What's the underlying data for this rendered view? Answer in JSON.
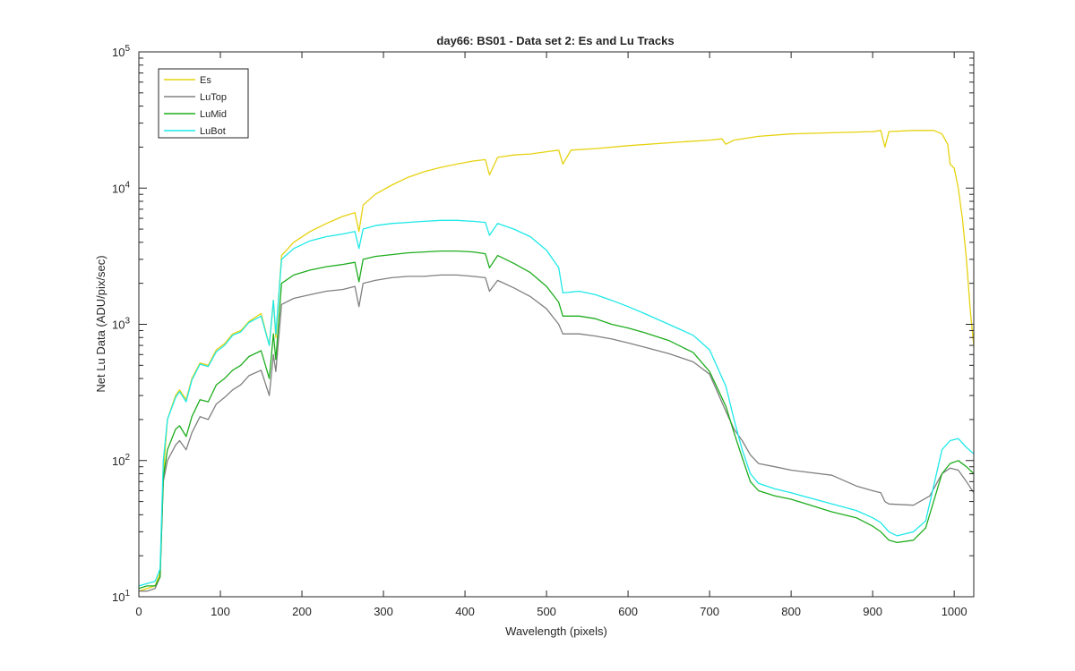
{
  "chart_data": {
    "type": "line",
    "title": "day66: BS01 - Data set 2: Es and Lu Tracks",
    "xlabel": "Wavelength (pixels)",
    "ylabel": "Net Lu Data (ADU/pix/sec)",
    "xlim": [
      0,
      1024
    ],
    "ylim": [
      10,
      100000
    ],
    "yscale": "log",
    "grid": false,
    "legend_position": "top-left",
    "x_ticks": [
      0,
      100,
      200,
      300,
      400,
      500,
      600,
      700,
      800,
      900,
      1000
    ],
    "y_ticks": [
      10,
      100,
      1000,
      10000,
      100000
    ],
    "y_tick_exponents": [
      "1",
      "2",
      "3",
      "4",
      "5"
    ],
    "y_tick_base": "10",
    "legend": [
      "Es",
      "LuTop",
      "LuMid",
      "LuBot"
    ],
    "series": [
      {
        "name": "Es",
        "color": "#e6d20f",
        "points": [
          [
            0,
            11
          ],
          [
            10,
            11.5
          ],
          [
            20,
            12
          ],
          [
            26,
            15
          ],
          [
            30,
            80
          ],
          [
            35,
            200
          ],
          [
            45,
            300
          ],
          [
            50,
            330
          ],
          [
            58,
            280
          ],
          [
            65,
            400
          ],
          [
            75,
            520
          ],
          [
            85,
            500
          ],
          [
            95,
            650
          ],
          [
            105,
            720
          ],
          [
            115,
            850
          ],
          [
            125,
            900
          ],
          [
            135,
            1050
          ],
          [
            150,
            1200
          ],
          [
            160,
            700
          ],
          [
            165,
            1500
          ],
          [
            168,
            800
          ],
          [
            175,
            3200
          ],
          [
            190,
            4000
          ],
          [
            210,
            4800
          ],
          [
            230,
            5500
          ],
          [
            250,
            6200
          ],
          [
            265,
            6600
          ],
          [
            270,
            4800
          ],
          [
            275,
            7500
          ],
          [
            290,
            9000
          ],
          [
            310,
            10500
          ],
          [
            330,
            12000
          ],
          [
            350,
            13200
          ],
          [
            370,
            14200
          ],
          [
            390,
            15000
          ],
          [
            410,
            15800
          ],
          [
            425,
            16200
          ],
          [
            430,
            12500
          ],
          [
            440,
            16800
          ],
          [
            460,
            17500
          ],
          [
            480,
            17800
          ],
          [
            500,
            18500
          ],
          [
            515,
            19000
          ],
          [
            520,
            15000
          ],
          [
            530,
            19000
          ],
          [
            560,
            19500
          ],
          [
            600,
            20500
          ],
          [
            650,
            21500
          ],
          [
            700,
            22500
          ],
          [
            715,
            23000
          ],
          [
            720,
            21000
          ],
          [
            730,
            22500
          ],
          [
            760,
            24000
          ],
          [
            800,
            25000
          ],
          [
            850,
            25500
          ],
          [
            900,
            26000
          ],
          [
            910,
            26500
          ],
          [
            915,
            20000
          ],
          [
            920,
            26000
          ],
          [
            950,
            26500
          ],
          [
            975,
            26500
          ],
          [
            985,
            25000
          ],
          [
            992,
            21000
          ],
          [
            995,
            15000
          ],
          [
            1000,
            14000
          ],
          [
            1005,
            10000
          ],
          [
            1010,
            6000
          ],
          [
            1015,
            3000
          ],
          [
            1020,
            1200
          ],
          [
            1024,
            700
          ]
        ]
      },
      {
        "name": "LuTop",
        "color": "#808080",
        "points": [
          [
            0,
            11
          ],
          [
            10,
            11
          ],
          [
            20,
            11.5
          ],
          [
            26,
            14
          ],
          [
            30,
            70
          ],
          [
            35,
            100
          ],
          [
            45,
            130
          ],
          [
            50,
            140
          ],
          [
            58,
            120
          ],
          [
            65,
            160
          ],
          [
            75,
            210
          ],
          [
            85,
            200
          ],
          [
            95,
            260
          ],
          [
            105,
            290
          ],
          [
            115,
            330
          ],
          [
            125,
            360
          ],
          [
            135,
            420
          ],
          [
            150,
            460
          ],
          [
            160,
            300
          ],
          [
            165,
            600
          ],
          [
            168,
            450
          ],
          [
            175,
            1400
          ],
          [
            190,
            1550
          ],
          [
            210,
            1650
          ],
          [
            230,
            1750
          ],
          [
            250,
            1800
          ],
          [
            265,
            1900
          ],
          [
            270,
            1350
          ],
          [
            275,
            2000
          ],
          [
            290,
            2100
          ],
          [
            310,
            2200
          ],
          [
            330,
            2250
          ],
          [
            350,
            2250
          ],
          [
            370,
            2300
          ],
          [
            390,
            2300
          ],
          [
            410,
            2250
          ],
          [
            425,
            2200
          ],
          [
            430,
            1750
          ],
          [
            440,
            2100
          ],
          [
            460,
            1850
          ],
          [
            480,
            1600
          ],
          [
            500,
            1300
          ],
          [
            515,
            1000
          ],
          [
            520,
            850
          ],
          [
            540,
            850
          ],
          [
            560,
            820
          ],
          [
            580,
            780
          ],
          [
            600,
            730
          ],
          [
            620,
            680
          ],
          [
            650,
            610
          ],
          [
            680,
            530
          ],
          [
            700,
            430
          ],
          [
            720,
            230
          ],
          [
            730,
            170
          ],
          [
            740,
            140
          ],
          [
            750,
            110
          ],
          [
            760,
            95
          ],
          [
            780,
            90
          ],
          [
            800,
            85
          ],
          [
            850,
            78
          ],
          [
            880,
            65
          ],
          [
            900,
            60
          ],
          [
            910,
            58
          ],
          [
            915,
            50
          ],
          [
            920,
            48
          ],
          [
            950,
            47
          ],
          [
            970,
            55
          ],
          [
            985,
            80
          ],
          [
            995,
            88
          ],
          [
            1005,
            85
          ],
          [
            1015,
            70
          ],
          [
            1024,
            58
          ]
        ]
      },
      {
        "name": "LuMid",
        "color": "#1ead1e",
        "points": [
          [
            0,
            11.5
          ],
          [
            10,
            12
          ],
          [
            20,
            12
          ],
          [
            26,
            14
          ],
          [
            30,
            75
          ],
          [
            35,
            120
          ],
          [
            45,
            170
          ],
          [
            50,
            180
          ],
          [
            58,
            150
          ],
          [
            65,
            210
          ],
          [
            75,
            280
          ],
          [
            85,
            270
          ],
          [
            95,
            360
          ],
          [
            105,
            400
          ],
          [
            115,
            460
          ],
          [
            125,
            500
          ],
          [
            135,
            580
          ],
          [
            150,
            640
          ],
          [
            160,
            400
          ],
          [
            165,
            850
          ],
          [
            168,
            550
          ],
          [
            175,
            2000
          ],
          [
            190,
            2300
          ],
          [
            210,
            2500
          ],
          [
            230,
            2650
          ],
          [
            250,
            2750
          ],
          [
            265,
            2850
          ],
          [
            270,
            2050
          ],
          [
            275,
            3000
          ],
          [
            290,
            3150
          ],
          [
            310,
            3250
          ],
          [
            330,
            3350
          ],
          [
            350,
            3400
          ],
          [
            370,
            3450
          ],
          [
            390,
            3450
          ],
          [
            410,
            3400
          ],
          [
            425,
            3300
          ],
          [
            430,
            2600
          ],
          [
            440,
            3200
          ],
          [
            460,
            2800
          ],
          [
            480,
            2400
          ],
          [
            500,
            1900
          ],
          [
            515,
            1450
          ],
          [
            520,
            1150
          ],
          [
            540,
            1150
          ],
          [
            560,
            1100
          ],
          [
            580,
            1000
          ],
          [
            600,
            940
          ],
          [
            620,
            870
          ],
          [
            650,
            760
          ],
          [
            680,
            620
          ],
          [
            700,
            450
          ],
          [
            720,
            250
          ],
          [
            730,
            160
          ],
          [
            740,
            105
          ],
          [
            750,
            70
          ],
          [
            760,
            60
          ],
          [
            780,
            55
          ],
          [
            800,
            52
          ],
          [
            850,
            42
          ],
          [
            880,
            38
          ],
          [
            900,
            33
          ],
          [
            910,
            30
          ],
          [
            920,
            26
          ],
          [
            930,
            25
          ],
          [
            950,
            26
          ],
          [
            965,
            32
          ],
          [
            985,
            80
          ],
          [
            995,
            95
          ],
          [
            1005,
            100
          ],
          [
            1015,
            90
          ],
          [
            1024,
            80
          ]
        ]
      },
      {
        "name": "LuBot",
        "color": "#1fe8e8",
        "points": [
          [
            0,
            12
          ],
          [
            10,
            12.5
          ],
          [
            20,
            13
          ],
          [
            26,
            16
          ],
          [
            30,
            100
          ],
          [
            35,
            200
          ],
          [
            45,
            290
          ],
          [
            50,
            320
          ],
          [
            58,
            270
          ],
          [
            65,
            390
          ],
          [
            75,
            510
          ],
          [
            85,
            490
          ],
          [
            95,
            630
          ],
          [
            105,
            700
          ],
          [
            115,
            830
          ],
          [
            125,
            880
          ],
          [
            135,
            1030
          ],
          [
            150,
            1150
          ],
          [
            160,
            700
          ],
          [
            165,
            1500
          ],
          [
            168,
            850
          ],
          [
            175,
            3000
          ],
          [
            190,
            3600
          ],
          [
            210,
            4100
          ],
          [
            230,
            4400
          ],
          [
            250,
            4600
          ],
          [
            265,
            4800
          ],
          [
            270,
            3600
          ],
          [
            275,
            5000
          ],
          [
            290,
            5300
          ],
          [
            310,
            5500
          ],
          [
            330,
            5600
          ],
          [
            350,
            5700
          ],
          [
            370,
            5800
          ],
          [
            390,
            5800
          ],
          [
            410,
            5700
          ],
          [
            425,
            5600
          ],
          [
            430,
            4500
          ],
          [
            440,
            5500
          ],
          [
            460,
            5000
          ],
          [
            480,
            4400
          ],
          [
            500,
            3500
          ],
          [
            515,
            2600
          ],
          [
            520,
            1700
          ],
          [
            540,
            1750
          ],
          [
            560,
            1650
          ],
          [
            580,
            1500
          ],
          [
            600,
            1350
          ],
          [
            620,
            1200
          ],
          [
            650,
            1000
          ],
          [
            680,
            830
          ],
          [
            700,
            650
          ],
          [
            720,
            350
          ],
          [
            730,
            200
          ],
          [
            740,
            120
          ],
          [
            750,
            80
          ],
          [
            760,
            68
          ],
          [
            780,
            62
          ],
          [
            800,
            58
          ],
          [
            850,
            48
          ],
          [
            880,
            43
          ],
          [
            900,
            38
          ],
          [
            910,
            35
          ],
          [
            920,
            30
          ],
          [
            930,
            28
          ],
          [
            950,
            30
          ],
          [
            965,
            36
          ],
          [
            985,
            120
          ],
          [
            995,
            140
          ],
          [
            1005,
            145
          ],
          [
            1015,
            125
          ],
          [
            1024,
            112
          ]
        ]
      }
    ]
  }
}
